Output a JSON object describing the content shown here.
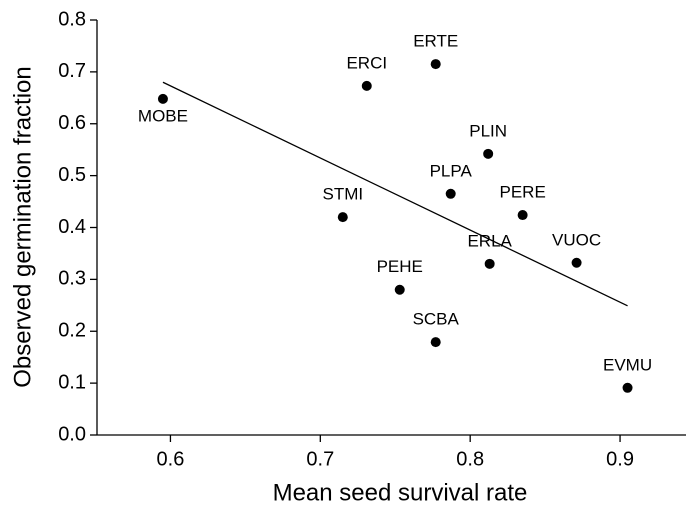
{
  "chart_data": {
    "type": "scatter",
    "xlabel": "Mean seed survival rate",
    "ylabel": "Observed germination fraction",
    "x": [
      0.595,
      0.731,
      0.777,
      0.812,
      0.787,
      0.715,
      0.835,
      0.813,
      0.871,
      0.753,
      0.777,
      0.905
    ],
    "values": [
      0.648,
      0.673,
      0.715,
      0.542,
      0.465,
      0.42,
      0.424,
      0.33,
      0.332,
      0.28,
      0.179,
      0.091
    ],
    "point_labels": [
      "MOBE",
      "ERCI",
      "ERTE",
      "PLIN",
      "PLPA",
      "STMI",
      "PERE",
      "ERLA",
      "VUOC",
      "PEHE",
      "SCBA",
      "EVMU"
    ],
    "color": "#000000",
    "trend_line": {
      "x": [
        0.595,
        0.905
      ],
      "values": [
        0.68,
        0.249
      ]
    },
    "xlim": [
      0.551,
      0.944
    ],
    "ylim": [
      0,
      0.8
    ],
    "xticks": [
      0.6,
      0.7,
      0.8,
      0.9
    ],
    "yticks": [
      {
        "value": 0,
        "label": "0.0"
      },
      0.1,
      0.2,
      0.3,
      0.4,
      0.5,
      0.6,
      0.7,
      0.8
    ]
  }
}
